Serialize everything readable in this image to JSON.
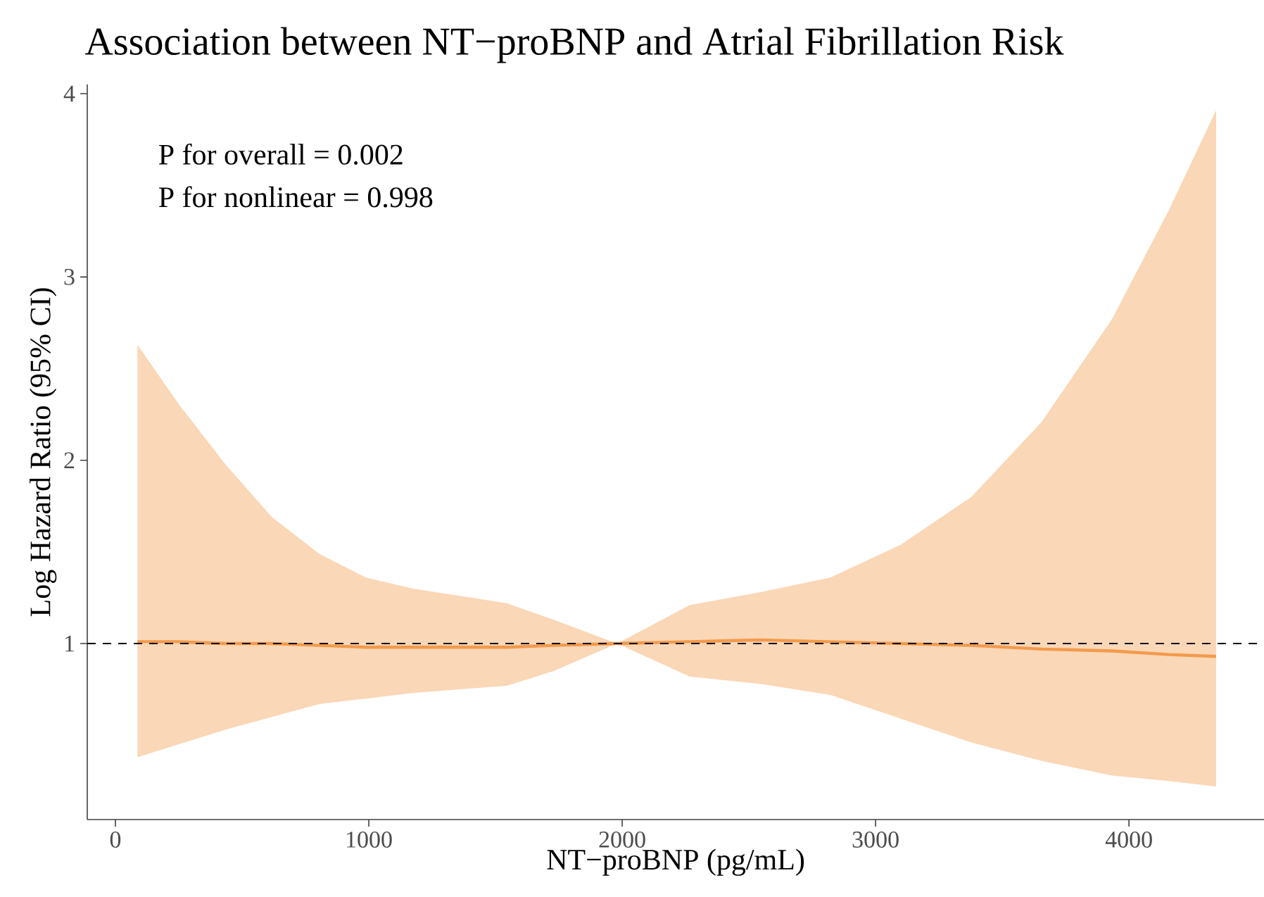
{
  "chart_data": {
    "type": "line",
    "title": "Association between NT−proBNP and Atrial Fibrillation Risk",
    "xlabel": "NT−proBNP (pg/mL)",
    "ylabel": "Log Hazard Ratio (95% CI)",
    "annotations": [
      "P for overall = 0.002",
      "P for nonlinear = 0.998"
    ],
    "x": [
      87,
      248,
      433,
      618,
      804,
      989,
      1174,
      1359,
      1544,
      1730,
      1980,
      2267,
      2544,
      2822,
      3100,
      3378,
      3656,
      3933,
      4156,
      4344
    ],
    "series": [
      {
        "color": "#f39a4c",
        "values": [
          1.01,
          1.01,
          1.0,
          1.0,
          0.99,
          0.98,
          0.98,
          0.98,
          0.98,
          0.99,
          1.0,
          1.01,
          1.02,
          1.01,
          1.0,
          0.99,
          0.97,
          0.96,
          0.94,
          0.93
        ],
        "upper": [
          2.63,
          2.31,
          1.98,
          1.69,
          1.49,
          1.36,
          1.3,
          1.26,
          1.22,
          1.13,
          1.0,
          1.21,
          1.28,
          1.36,
          1.54,
          1.8,
          2.21,
          2.77,
          3.36,
          3.91
        ],
        "lower": [
          0.38,
          0.45,
          0.53,
          0.6,
          0.67,
          0.7,
          0.73,
          0.75,
          0.77,
          0.85,
          1.0,
          0.82,
          0.78,
          0.72,
          0.59,
          0.46,
          0.36,
          0.28,
          0.25,
          0.22
        ]
      }
    ],
    "xlim": [
      -111,
      4533
    ],
    "ylim": [
      0.04,
      4.05
    ],
    "xticks": [
      0,
      1000,
      2000,
      3000,
      4000
    ],
    "yticks": [
      1,
      2,
      3,
      4
    ],
    "ref_lines": [
      {
        "axis": "y",
        "value": 1,
        "color": "#000000",
        "line_style": "dashed"
      }
    ],
    "grid": false,
    "marker": "none",
    "line_style": "solid"
  }
}
